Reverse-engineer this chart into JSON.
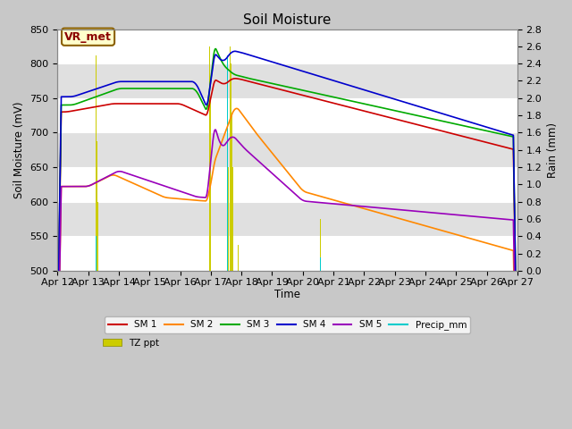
{
  "title": "Soil Moisture",
  "xlabel": "Time",
  "ylabel_left": "Soil Moisture (mV)",
  "ylabel_right": "Rain (mm)",
  "ylim_left": [
    500,
    850
  ],
  "ylim_right": [
    0.0,
    2.8
  ],
  "fig_bg": "#c8c8c8",
  "plot_bg_light": "#ffffff",
  "plot_bg_dark": "#e0e0e0",
  "vr_met_label": "VR_met",
  "sm1_color": "#cc0000",
  "sm2_color": "#ff8800",
  "sm3_color": "#00aa00",
  "sm4_color": "#0000cc",
  "sm5_color": "#9900bb",
  "precip_color": "#00cccc",
  "tz_color": "#cccc00",
  "x_tick_labels": [
    "Apr 12",
    "Apr 13",
    "Apr 14",
    "Apr 15",
    "Apr 16",
    "Apr 17",
    "Apr 18",
    "Apr 19",
    "Apr 20",
    "Apr 21",
    "Apr 22",
    "Apr 23",
    "Apr 24",
    "Apr 25",
    "Apr 26",
    "Apr 27"
  ],
  "n_points": 1500,
  "n_days": 15,
  "grid_yticks": [
    500,
    550,
    600,
    650,
    700,
    750,
    800,
    850
  ]
}
